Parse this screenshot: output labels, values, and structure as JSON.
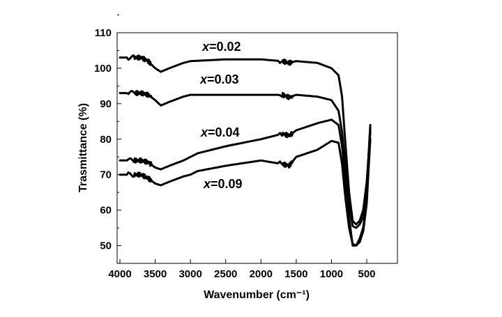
{
  "chart_data": {
    "type": "line",
    "xlabel": "Wavenumber (cm⁻¹)",
    "ylabel": "Trasmittance (%)",
    "xlim": [
      4000,
      200
    ],
    "ylim": [
      45,
      110
    ],
    "x_reversed": true,
    "x_ticks": [
      4000,
      3500,
      3000,
      2500,
      2000,
      1500,
      1000,
      500
    ],
    "y_ticks": [
      50,
      60,
      70,
      80,
      90,
      100,
      110
    ],
    "grid": false,
    "legend": "none (labels placed next to curves)",
    "series": [
      {
        "name": "x=0.02",
        "x": [
          4000,
          3800,
          3700,
          3600,
          3500,
          3420,
          3300,
          3100,
          3000,
          2500,
          2000,
          1700,
          1600,
          1500,
          1200,
          1000,
          900,
          850,
          800,
          750,
          700,
          650,
          600,
          550,
          500,
          450
        ],
        "y": [
          103,
          103,
          103,
          102,
          100,
          99,
          100,
          101.5,
          102,
          102.5,
          102.5,
          102,
          101.5,
          102,
          101.5,
          100,
          98,
          92,
          78,
          65,
          57,
          56,
          57,
          60,
          68,
          82
        ]
      },
      {
        "name": "x=0.03",
        "x": [
          4000,
          3800,
          3700,
          3600,
          3500,
          3420,
          3300,
          3100,
          3000,
          2500,
          2000,
          1700,
          1600,
          1500,
          1200,
          1000,
          900,
          850,
          800,
          750,
          700,
          650,
          600,
          550,
          500,
          450
        ],
        "y": [
          93,
          93,
          93,
          92.5,
          91,
          89.5,
          90.5,
          92,
          92.5,
          92.5,
          92.5,
          92.5,
          91.8,
          92.5,
          92,
          91,
          88,
          82,
          72,
          62,
          55.5,
          55,
          56,
          58,
          66,
          84
        ]
      },
      {
        "name": "x=0.04",
        "x": [
          4000,
          3800,
          3700,
          3600,
          3500,
          3420,
          3300,
          3100,
          3000,
          2900,
          2500,
          2000,
          1700,
          1600,
          1500,
          1200,
          1000,
          900,
          850,
          800,
          750,
          700,
          650,
          600,
          550,
          500,
          450
        ],
        "y": [
          74,
          74,
          74,
          73.5,
          72,
          71.5,
          72.5,
          74,
          75,
          76,
          78,
          80,
          81.5,
          81,
          82.5,
          84.5,
          85.5,
          84,
          78,
          68,
          58,
          50,
          50,
          52,
          55,
          63,
          83
        ]
      },
      {
        "name": "x=0.09",
        "x": [
          4000,
          3800,
          3700,
          3600,
          3500,
          3420,
          3300,
          3100,
          3000,
          2900,
          2500,
          2000,
          1700,
          1600,
          1500,
          1200,
          1000,
          900,
          850,
          800,
          750,
          700,
          650,
          600,
          550,
          500,
          450
        ],
        "y": [
          70,
          70,
          70,
          69,
          67.5,
          67,
          68,
          69.5,
          70,
          71,
          72.5,
          74,
          73,
          72.5,
          75,
          77,
          79.5,
          79,
          73,
          63,
          55,
          50.5,
          50,
          51,
          54,
          62,
          80
        ]
      }
    ]
  },
  "labels": {
    "s1_italic": "x",
    "s1_rest": "=0.02",
    "s2_italic": "x",
    "s2_rest": "=0.03",
    "s3_italic": "x",
    "s3_rest": "=0.04",
    "s4_italic": "x",
    "s4_rest": "=0.09"
  }
}
